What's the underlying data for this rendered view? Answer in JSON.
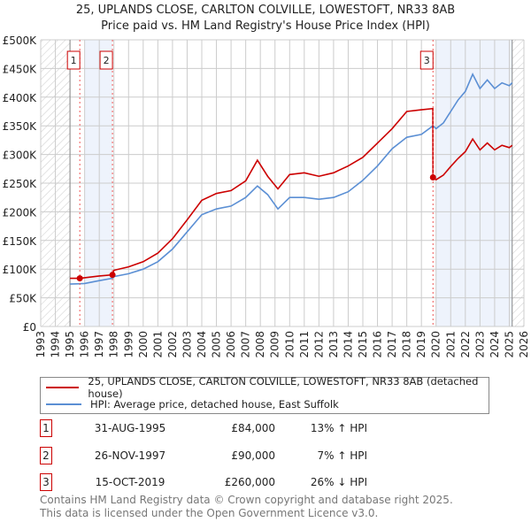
{
  "title": "25, UPLANDS CLOSE, CARLTON COLVILLE, LOWESTOFT, NR33 8AB",
  "subtitle": "Price paid vs. HM Land Registry's House Price Index (HPI)",
  "legend": {
    "property": "25, UPLANDS CLOSE, CARLTON COLVILLE, LOWESTOFT, NR33 8AB (detached house)",
    "hpi": "HPI: Average price, detached house, East Suffolk"
  },
  "sales": [
    {
      "n": "1",
      "date": "31-AUG-1995",
      "price": "£84,000",
      "pct": "13% ↑ HPI",
      "x": 1995.67,
      "v": 84
    },
    {
      "n": "2",
      "date": "26-NOV-1997",
      "price": "£90,000",
      "pct": "7% ↑ HPI",
      "x": 1997.9,
      "v": 90
    },
    {
      "n": "3",
      "date": "15-OCT-2019",
      "price": "£260,000",
      "pct": "26% ↓ HPI",
      "x": 2019.79,
      "v": 260
    }
  ],
  "footer": [
    "Contains HM Land Registry data © Crown copyright and database right 2025.",
    "This data is licensed under the Open Government Licence v3.0."
  ],
  "colors": {
    "property": "#cc0000",
    "hpi": "#5b8fd4",
    "shade": "#eef3fc",
    "grid": "#cccccc"
  },
  "chart_data": {
    "type": "line",
    "xlim": [
      1993,
      2026
    ],
    "ylim": [
      0,
      500
    ],
    "yticks": [
      0,
      50,
      100,
      150,
      200,
      250,
      300,
      350,
      400,
      450,
      500
    ],
    "ytick_labels": [
      "£0",
      "£50K",
      "£100K",
      "£150K",
      "£200K",
      "£250K",
      "£300K",
      "£350K",
      "£400K",
      "£450K",
      "£500K"
    ],
    "xticks": [
      1993,
      1994,
      1995,
      1996,
      1997,
      1998,
      1999,
      2000,
      2001,
      2002,
      2003,
      2004,
      2005,
      2006,
      2007,
      2008,
      2009,
      2010,
      2011,
      2012,
      2013,
      2014,
      2015,
      2016,
      2017,
      2018,
      2019,
      2020,
      2021,
      2022,
      2023,
      2024,
      2025,
      2026
    ],
    "data_range": [
      1995,
      2025.2
    ],
    "shaded": [
      [
        1996,
        1997.9
      ],
      [
        2020,
        2025.2
      ]
    ],
    "series": [
      {
        "name": "HPI",
        "x": [
          1995,
          1995.67,
          1996,
          1997,
          1997.9,
          1998,
          1999,
          2000,
          2001,
          2002,
          2003,
          2004,
          2005,
          2006,
          2007,
          2007.8,
          2008.5,
          2009.2,
          2010,
          2011,
          2012,
          2013,
          2014,
          2015,
          2016,
          2017,
          2018,
          2019,
          2019.79,
          2020,
          2020.5,
          2021,
          2021.5,
          2022,
          2022.5,
          2023,
          2023.5,
          2024,
          2024.5,
          2025,
          2025.2
        ],
        "values": [
          74,
          74.5,
          75,
          80,
          84,
          87,
          92,
          100,
          113,
          135,
          165,
          195,
          205,
          210,
          225,
          245,
          230,
          205,
          225,
          225,
          222,
          225,
          235,
          255,
          280,
          310,
          330,
          335,
          350,
          345,
          355,
          375,
          395,
          410,
          440,
          415,
          430,
          415,
          425,
          420,
          425
        ]
      },
      {
        "name": "Property",
        "x": [
          1995,
          1995.67,
          1996,
          1997,
          1997.9,
          1998,
          1999,
          2000,
          2001,
          2002,
          2003,
          2004,
          2005,
          2006,
          2007,
          2007.8,
          2008.5,
          2009.2,
          2010,
          2011,
          2012,
          2013,
          2014,
          2015,
          2016,
          2017,
          2018,
          2019,
          2019.78,
          2019.79,
          2020,
          2020.5,
          2021,
          2021.5,
          2022,
          2022.5,
          2023,
          2023.5,
          2024,
          2024.5,
          2025,
          2025.2
        ],
        "values": [
          84,
          84,
          85,
          88,
          90,
          98,
          104,
          113,
          128,
          153,
          186,
          220,
          232,
          237,
          254,
          290,
          262,
          240,
          265,
          268,
          262,
          268,
          280,
          295,
          320,
          345,
          375,
          378,
          380,
          260,
          256,
          264,
          279,
          293,
          305,
          327,
          308,
          320,
          308,
          316,
          312,
          316
        ]
      }
    ]
  }
}
